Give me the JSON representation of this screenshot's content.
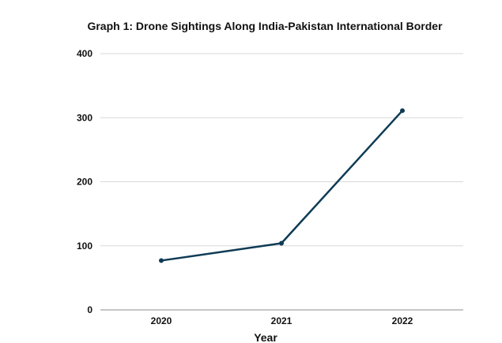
{
  "chart_data": {
    "type": "line",
    "title": "Graph 1: Drone Sightings Along India-Pakistan International Border",
    "xlabel": "Year",
    "ylabel": "",
    "categories": [
      "2020",
      "2021",
      "2022"
    ],
    "series": [
      {
        "name": "Drone Sightings",
        "values": [
          77,
          104,
          311
        ]
      }
    ],
    "ylim": [
      0,
      400
    ],
    "yticks": [
      0,
      100,
      200,
      300,
      400
    ],
    "grid": true,
    "legend": "none",
    "colors": {
      "line": "#0f3b55",
      "grid": "#d9d9d9",
      "axis": "#8c8c8c"
    }
  }
}
